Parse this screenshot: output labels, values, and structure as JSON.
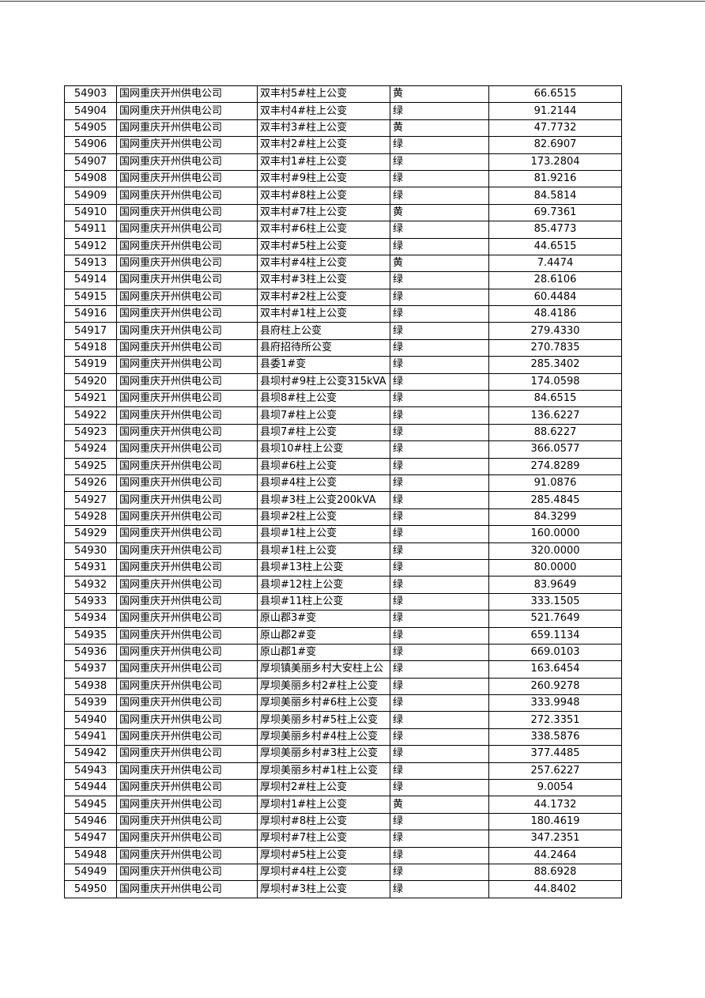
{
  "table": {
    "rows": [
      [
        "54903",
        "国网重庆开州供电公司",
        "双丰村5#柱上公变",
        "黄",
        "66.6515"
      ],
      [
        "54904",
        "国网重庆开州供电公司",
        "双丰村4#柱上公变",
        "绿",
        "91.2144"
      ],
      [
        "54905",
        "国网重庆开州供电公司",
        "双丰村3#柱上公变",
        "黄",
        "47.7732"
      ],
      [
        "54906",
        "国网重庆开州供电公司",
        "双丰村2#柱上公变",
        "绿",
        "82.6907"
      ],
      [
        "54907",
        "国网重庆开州供电公司",
        "双丰村1#柱上公变",
        "绿",
        "173.2804"
      ],
      [
        "54908",
        "国网重庆开州供电公司",
        "双丰村#9柱上公变",
        "绿",
        "81.9216"
      ],
      [
        "54909",
        "国网重庆开州供电公司",
        "双丰村#8柱上公变",
        "绿",
        "84.5814"
      ],
      [
        "54910",
        "国网重庆开州供电公司",
        "双丰村#7柱上公变",
        "黄",
        "69.7361"
      ],
      [
        "54911",
        "国网重庆开州供电公司",
        "双丰村#6柱上公变",
        "绿",
        "85.4773"
      ],
      [
        "54912",
        "国网重庆开州供电公司",
        "双丰村#5柱上公变",
        "绿",
        "44.6515"
      ],
      [
        "54913",
        "国网重庆开州供电公司",
        "双丰村#4柱上公变",
        "黄",
        "7.4474"
      ],
      [
        "54914",
        "国网重庆开州供电公司",
        "双丰村#3柱上公变",
        "绿",
        "28.6106"
      ],
      [
        "54915",
        "国网重庆开州供电公司",
        "双丰村#2柱上公变",
        "绿",
        "60.4484"
      ],
      [
        "54916",
        "国网重庆开州供电公司",
        "双丰村#1柱上公变",
        "绿",
        "48.4186"
      ],
      [
        "54917",
        "国网重庆开州供电公司",
        "县府柱上公变",
        "绿",
        "279.4330"
      ],
      [
        "54918",
        "国网重庆开州供电公司",
        "县府招待所公变",
        "绿",
        "270.7835"
      ],
      [
        "54919",
        "国网重庆开州供电公司",
        "县委1#变",
        "绿",
        "285.3402"
      ],
      [
        "54920",
        "国网重庆开州供电公司",
        "县坝村#9柱上公变315kVA",
        "绿",
        "174.0598"
      ],
      [
        "54921",
        "国网重庆开州供电公司",
        "县坝8#柱上公变",
        "绿",
        "84.6515"
      ],
      [
        "54922",
        "国网重庆开州供电公司",
        "县坝7#柱上公变",
        "绿",
        "136.6227"
      ],
      [
        "54923",
        "国网重庆开州供电公司",
        "县坝7#柱上公变",
        "绿",
        "88.6227"
      ],
      [
        "54924",
        "国网重庆开州供电公司",
        "县坝10#柱上公变",
        "绿",
        "366.0577"
      ],
      [
        "54925",
        "国网重庆开州供电公司",
        "县坝#6柱上公变",
        "绿",
        "274.8289"
      ],
      [
        "54926",
        "国网重庆开州供电公司",
        "县坝#4柱上公变",
        "绿",
        "91.0876"
      ],
      [
        "54927",
        "国网重庆开州供电公司",
        "县坝#3柱上公变200kVA",
        "绿",
        "285.4845"
      ],
      [
        "54928",
        "国网重庆开州供电公司",
        "县坝#2柱上公变",
        "绿",
        "84.3299"
      ],
      [
        "54929",
        "国网重庆开州供电公司",
        "县坝#1柱上公变",
        "绿",
        "160.0000"
      ],
      [
        "54930",
        "国网重庆开州供电公司",
        "县坝#1柱上公变",
        "绿",
        "320.0000"
      ],
      [
        "54931",
        "国网重庆开州供电公司",
        "县坝#13柱上公变",
        "绿",
        "80.0000"
      ],
      [
        "54932",
        "国网重庆开州供电公司",
        "县坝#12柱上公变",
        "绿",
        "83.9649"
      ],
      [
        "54933",
        "国网重庆开州供电公司",
        "县坝#11柱上公变",
        "绿",
        "333.1505"
      ],
      [
        "54934",
        "国网重庆开州供电公司",
        "原山郡3#变",
        "绿",
        "521.7649"
      ],
      [
        "54935",
        "国网重庆开州供电公司",
        "原山郡2#变",
        "绿",
        "659.1134"
      ],
      [
        "54936",
        "国网重庆开州供电公司",
        "原山郡1#变",
        "绿",
        "669.0103"
      ],
      [
        "54937",
        "国网重庆开州供电公司",
        "厚坝镇美丽乡村大安柱上公",
        "绿",
        "163.6454"
      ],
      [
        "54938",
        "国网重庆开州供电公司",
        "厚坝美丽乡村2#柱上公变",
        "绿",
        "260.9278"
      ],
      [
        "54939",
        "国网重庆开州供电公司",
        "厚坝美丽乡村#6柱上公变",
        "绿",
        "333.9948"
      ],
      [
        "54940",
        "国网重庆开州供电公司",
        "厚坝美丽乡村#5柱上公变",
        "绿",
        "272.3351"
      ],
      [
        "54941",
        "国网重庆开州供电公司",
        "厚坝美丽乡村#4柱上公变",
        "绿",
        "338.5876"
      ],
      [
        "54942",
        "国网重庆开州供电公司",
        "厚坝美丽乡村#3柱上公变",
        "绿",
        "377.4485"
      ],
      [
        "54943",
        "国网重庆开州供电公司",
        "厚坝美丽乡村#1柱上公变",
        "绿",
        "257.6227"
      ],
      [
        "54944",
        "国网重庆开州供电公司",
        "厚坝村2#柱上公变",
        "绿",
        "9.0054"
      ],
      [
        "54945",
        "国网重庆开州供电公司",
        "厚坝村1#柱上公变",
        "黄",
        "44.1732"
      ],
      [
        "54946",
        "国网重庆开州供电公司",
        "厚坝村#8柱上公变",
        "绿",
        "180.4619"
      ],
      [
        "54947",
        "国网重庆开州供电公司",
        "厚坝村#7柱上公变",
        "绿",
        "347.2351"
      ],
      [
        "54948",
        "国网重庆开州供电公司",
        "厚坝村#5柱上公变",
        "绿",
        "44.2464"
      ],
      [
        "54949",
        "国网重庆开州供电公司",
        "厚坝村#4柱上公变",
        "绿",
        "88.6928"
      ],
      [
        "54950",
        "国网重庆开州供电公司",
        "厚坝村#3柱上公变",
        "绿",
        "44.8402"
      ]
    ]
  }
}
